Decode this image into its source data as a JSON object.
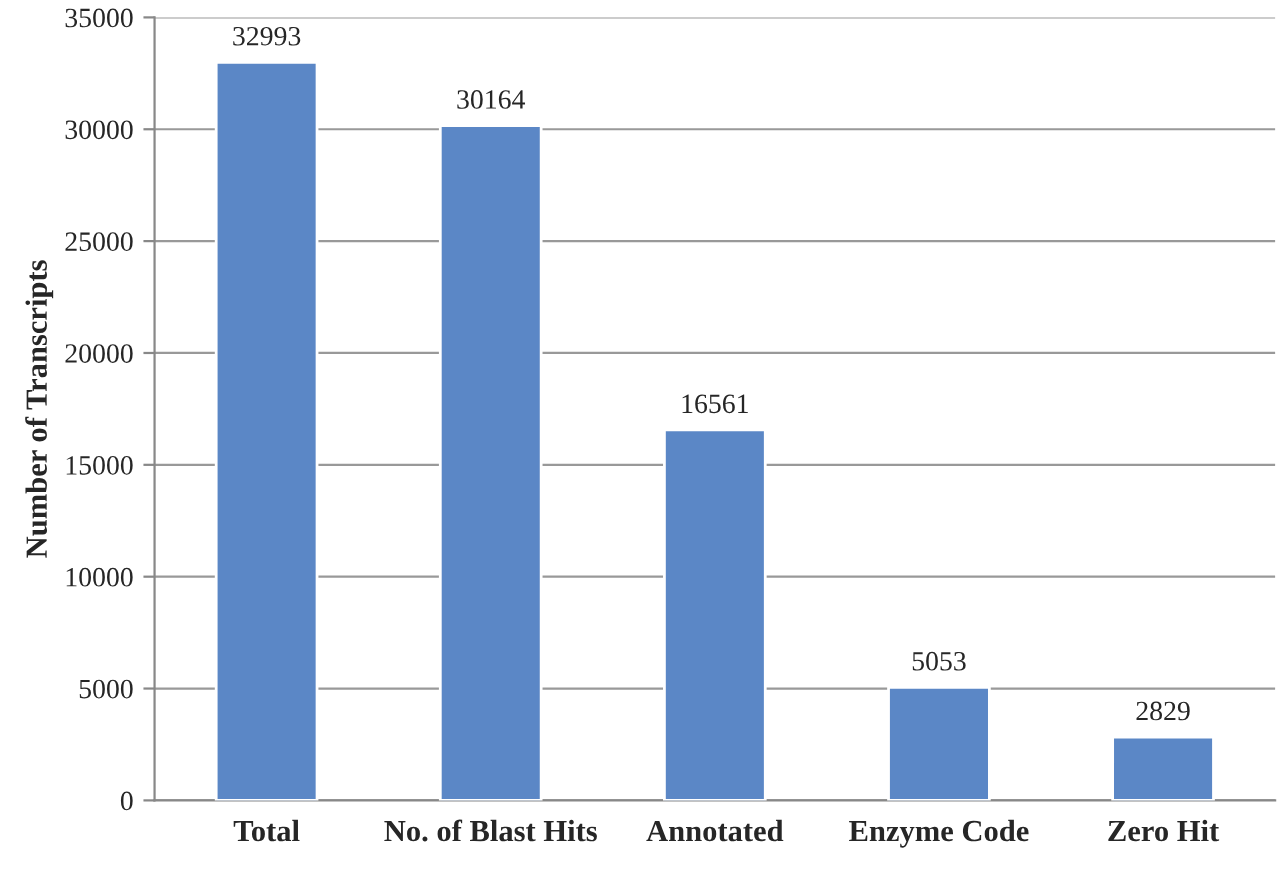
{
  "chart_data": {
    "type": "bar",
    "ylabel": "Number of Transcripts",
    "categories": [
      "Total",
      "No. of Blast Hits",
      "Annotated",
      "Enzyme Code",
      "Zero Hit"
    ],
    "values": [
      32993,
      30164,
      16561,
      5053,
      2829
    ],
    "color": "#5b87c6",
    "ylim": [
      0,
      35000
    ],
    "yticks": [
      0,
      5000,
      10000,
      15000,
      20000,
      25000,
      30000,
      35000
    ],
    "grid": "y",
    "data_labels": true,
    "legend": false
  }
}
